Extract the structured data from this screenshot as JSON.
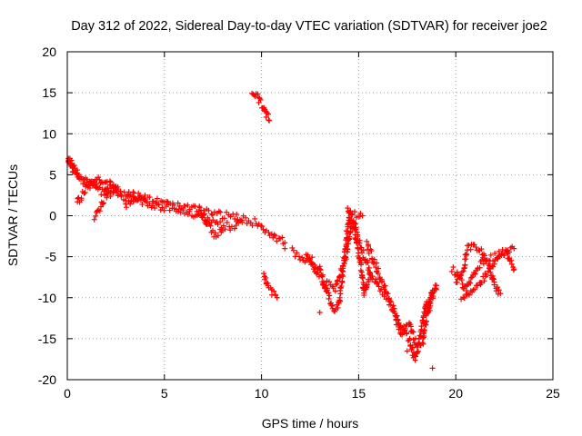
{
  "chart_data": {
    "type": "scatter",
    "title": "Day 312 of 2022, Sidereal Day-to-day VTEC variation (SDTVAR) for receiver joe2",
    "xlabel": "GPS time / hours",
    "ylabel": "SDTVAR / TECUs",
    "xlim": [
      0,
      25
    ],
    "ylim": [
      -20,
      20
    ],
    "xticks": [
      0,
      5,
      10,
      15,
      20,
      25
    ],
    "yticks": [
      -20,
      -15,
      -10,
      -5,
      0,
      5,
      10,
      15,
      20
    ],
    "xtick_labels": [
      "0",
      "5",
      "10",
      "15",
      "20",
      "25"
    ],
    "ytick_labels": [
      "-20",
      "-15",
      "-10",
      "-5",
      "0",
      "5",
      "10",
      "15",
      "20"
    ],
    "grid": true,
    "marker": "+",
    "color": "#ff0000",
    "series": [
      {
        "name": "SDTVAR",
        "trends": [
          [
            [
              0.0,
              7.6
            ],
            [
              0.3,
              6.0
            ],
            [
              0.6,
              4.8
            ],
            [
              1.2,
              4.0
            ],
            [
              2.0,
              3.5
            ],
            [
              3.0,
              2.8
            ],
            [
              4.0,
              2.1
            ],
            [
              5.0,
              1.5
            ],
            [
              6.0,
              1.0
            ],
            [
              7.0,
              0.5
            ],
            [
              8.0,
              0.1
            ],
            [
              9.0,
              -0.4
            ],
            [
              9.8,
              -0.9
            ],
            [
              10.5,
              -2.2
            ],
            [
              11.2,
              -3.3
            ]
          ],
          [
            [
              0.0,
              7.2
            ],
            [
              0.3,
              5.5
            ],
            [
              0.7,
              4.2
            ],
            [
              1.5,
              3.2
            ],
            [
              2.5,
              2.5
            ],
            [
              3.5,
              2.0
            ],
            [
              4.5,
              1.3
            ],
            [
              5.5,
              0.8
            ],
            [
              6.5,
              0.2
            ],
            [
              7.5,
              -0.7
            ],
            [
              8.5,
              -1.5
            ],
            [
              9.0,
              -0.8
            ]
          ],
          [
            [
              0.5,
              1.5
            ],
            [
              1.0,
              3.5
            ],
            [
              1.5,
              4.6
            ],
            [
              2.0,
              4.3
            ],
            [
              2.5,
              3.6
            ]
          ],
          [
            [
              1.4,
              -0.3
            ],
            [
              1.8,
              1.5
            ],
            [
              2.2,
              3.0
            ],
            [
              2.6,
              3.5
            ]
          ],
          [
            [
              3.0,
              1.0
            ],
            [
              3.5,
              2.2
            ],
            [
              4.0,
              2.5
            ]
          ],
          [
            [
              6.8,
              0.8
            ],
            [
              7.2,
              -1.0
            ],
            [
              7.6,
              -2.4
            ],
            [
              8.0,
              -1.8
            ]
          ],
          [
            [
              9.5,
              15.3
            ],
            [
              9.8,
              14.5
            ],
            [
              10.1,
              13.2
            ],
            [
              10.4,
              11.6
            ]
          ],
          [
            [
              10.1,
              -7.2
            ],
            [
              10.3,
              -8.5
            ],
            [
              10.5,
              -9.3
            ],
            [
              10.8,
              -10.0
            ]
          ],
          [
            [
              11.6,
              -4.3
            ],
            [
              12.0,
              -5.0
            ],
            [
              12.6,
              -5.5
            ],
            [
              13.0,
              -6.5
            ],
            [
              13.2,
              -8.0
            ],
            [
              13.4,
              -9.5
            ],
            [
              13.7,
              -11.5
            ],
            [
              14.0,
              -10.5
            ],
            [
              14.2,
              -6.5
            ],
            [
              14.4,
              -2.0
            ],
            [
              14.6,
              0.5
            ],
            [
              14.8,
              -1.0
            ],
            [
              15.0,
              -3.0
            ],
            [
              15.3,
              -5.0
            ],
            [
              15.6,
              -7.0
            ],
            [
              16.0,
              -8.5
            ],
            [
              16.5,
              -10.0
            ],
            [
              16.9,
              -12.5
            ],
            [
              17.2,
              -14.5
            ],
            [
              17.6,
              -13.0
            ],
            [
              18.0,
              -16.0
            ],
            [
              18.3,
              -15.5
            ],
            [
              18.5,
              -12.0
            ],
            [
              18.7,
              -10.0
            ],
            [
              19.0,
              -9.0
            ]
          ],
          [
            [
              12.3,
              -4.8
            ],
            [
              12.8,
              -7.0
            ],
            [
              13.3,
              -8.3
            ],
            [
              13.8,
              -8.8
            ],
            [
              14.3,
              -5.5
            ],
            [
              14.6,
              -1.5
            ]
          ],
          [
            [
              14.4,
              0.5
            ],
            [
              14.8,
              -2.0
            ],
            [
              15.1,
              -6.0
            ],
            [
              15.3,
              -9.5
            ],
            [
              15.6,
              -7.0
            ]
          ],
          [
            [
              14.8,
              0.3
            ],
            [
              15.2,
              0.0
            ]
          ],
          [
            [
              15.4,
              -3.5
            ],
            [
              15.8,
              -5.5
            ],
            [
              16.1,
              -7.5
            ],
            [
              16.5,
              -9.5
            ]
          ],
          [
            [
              16.6,
              -10.5
            ],
            [
              16.9,
              -12.0
            ],
            [
              17.2,
              -13.5
            ],
            [
              17.6,
              -15.0
            ],
            [
              17.9,
              -17.5
            ],
            [
              18.2,
              -14.5
            ],
            [
              18.5,
              -10.5
            ]
          ],
          [
            [
              18.6,
              -12.0
            ],
            [
              18.8,
              -9.0
            ],
            [
              19.0,
              -8.5
            ]
          ],
          [
            [
              19.8,
              -6.5
            ],
            [
              20.2,
              -7.5
            ],
            [
              20.5,
              -9.0
            ],
            [
              20.8,
              -8.0
            ],
            [
              21.1,
              -6.5
            ],
            [
              21.5,
              -5.5
            ],
            [
              22.0,
              -5.0
            ],
            [
              22.5,
              -4.5
            ],
            [
              23.0,
              -4.0
            ]
          ],
          [
            [
              20.0,
              -8.0
            ],
            [
              20.4,
              -6.5
            ],
            [
              20.6,
              -4.0
            ],
            [
              20.9,
              -3.5
            ],
            [
              21.3,
              -4.5
            ],
            [
              21.7,
              -6.0
            ],
            [
              22.0,
              -8.5
            ],
            [
              22.3,
              -9.5
            ]
          ],
          [
            [
              20.3,
              -10.5
            ],
            [
              20.7,
              -9.5
            ],
            [
              21.2,
              -8.5
            ],
            [
              21.6,
              -7.0
            ],
            [
              22.1,
              -5.5
            ],
            [
              22.6,
              -4.2
            ],
            [
              23.0,
              -6.5
            ]
          ]
        ],
        "outliers": [
          [
            18.8,
            -18.6
          ],
          [
            17.5,
            -16.5
          ],
          [
            11.2,
            -4.0
          ],
          [
            13.0,
            -11.8
          ],
          [
            16.2,
            -8.0
          ]
        ]
      }
    ]
  }
}
